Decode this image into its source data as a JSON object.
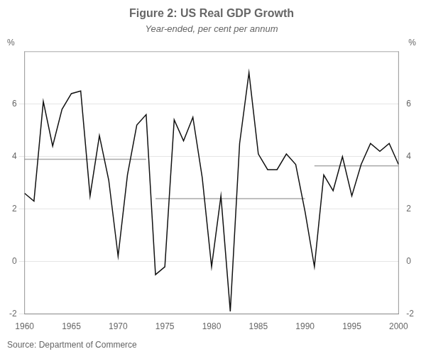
{
  "chart_data": {
    "type": "line",
    "title": "Figure 2: US Real GDP Growth",
    "subtitle": "Year-ended, per cent per annum",
    "source": "Source: Department of Commerce",
    "x": [
      1960,
      1961,
      1962,
      1963,
      1964,
      1965,
      1966,
      1967,
      1968,
      1969,
      1970,
      1971,
      1972,
      1973,
      1974,
      1975,
      1976,
      1977,
      1978,
      1979,
      1980,
      1981,
      1982,
      1983,
      1984,
      1985,
      1986,
      1987,
      1988,
      1989,
      1990,
      1991,
      1992,
      1993,
      1994,
      1995,
      1996,
      1997,
      1998,
      1999,
      2000
    ],
    "series": [
      {
        "color": "#111111",
        "values": [
          2.6,
          2.3,
          6.1,
          4.4,
          5.8,
          6.4,
          6.5,
          2.5,
          4.8,
          3.1,
          0.2,
          3.3,
          5.2,
          5.6,
          -0.5,
          -0.2,
          5.4,
          4.6,
          5.5,
          3.2,
          -0.2,
          2.5,
          -1.9,
          4.5,
          7.2,
          4.1,
          3.5,
          3.5,
          4.1,
          3.7,
          1.9,
          -0.2,
          3.3,
          2.7,
          4.0,
          2.5,
          3.7,
          4.5,
          4.2,
          4.5,
          3.7
        ]
      }
    ],
    "ref_lines": [
      {
        "x_start": 1960,
        "x_end": 1973,
        "y": 3.9,
        "color": "#aaaaaa"
      },
      {
        "x_start": 1974,
        "x_end": 1990,
        "y": 2.4,
        "color": "#aaaaaa"
      },
      {
        "x_start": 1991,
        "x_end": 2000,
        "y": 3.65,
        "color": "#aaaaaa"
      }
    ],
    "xlim": [
      1960,
      2000
    ],
    "xticks": [
      1960,
      1965,
      1970,
      1975,
      1980,
      1985,
      1990,
      1995,
      2000
    ],
    "ylim": [
      -2,
      8
    ],
    "yticks": [
      -2,
      0,
      2,
      4,
      6
    ],
    "y2lim": [
      -2,
      8
    ],
    "y2ticks": [
      -2,
      0,
      2,
      4,
      6
    ],
    "ylabel": "%",
    "y2label": "%",
    "grid": true
  }
}
